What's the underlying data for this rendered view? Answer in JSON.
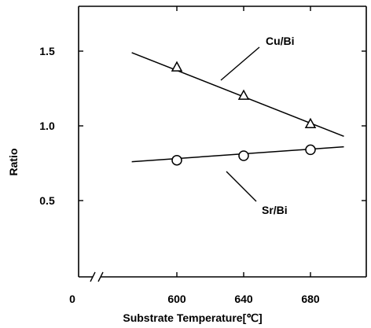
{
  "chart_data": {
    "type": "line",
    "title": "",
    "xlabel": "Substrate  Temperature[℃]",
    "ylabel": "Ratio",
    "xlim": [
      555,
      720
    ],
    "ylim": [
      0,
      1.95
    ],
    "x_axis_break": true,
    "x_origin_label": "0",
    "xticks": [
      600,
      640,
      680
    ],
    "yticks": [
      0.5,
      1.0,
      1.5
    ],
    "ytick_labels": [
      "0.5",
      "1.0",
      "1.5"
    ],
    "xtick_labels": [
      "600",
      "640",
      "680"
    ],
    "grid": false,
    "series": [
      {
        "name": "Cu/Bi",
        "marker": "triangle",
        "x": [
          600,
          640,
          680
        ],
        "y": [
          1.39,
          1.2,
          1.01
        ],
        "fit_line": {
          "x": [
            573,
            700
          ],
          "y": [
            1.49,
            0.93
          ]
        }
      },
      {
        "name": "Sr/Bi",
        "marker": "circle",
        "x": [
          600,
          640,
          680
        ],
        "y": [
          0.77,
          0.8,
          0.84
        ],
        "fit_line": {
          "x": [
            573,
            700
          ],
          "y": [
            0.76,
            0.86
          ]
        }
      }
    ]
  }
}
